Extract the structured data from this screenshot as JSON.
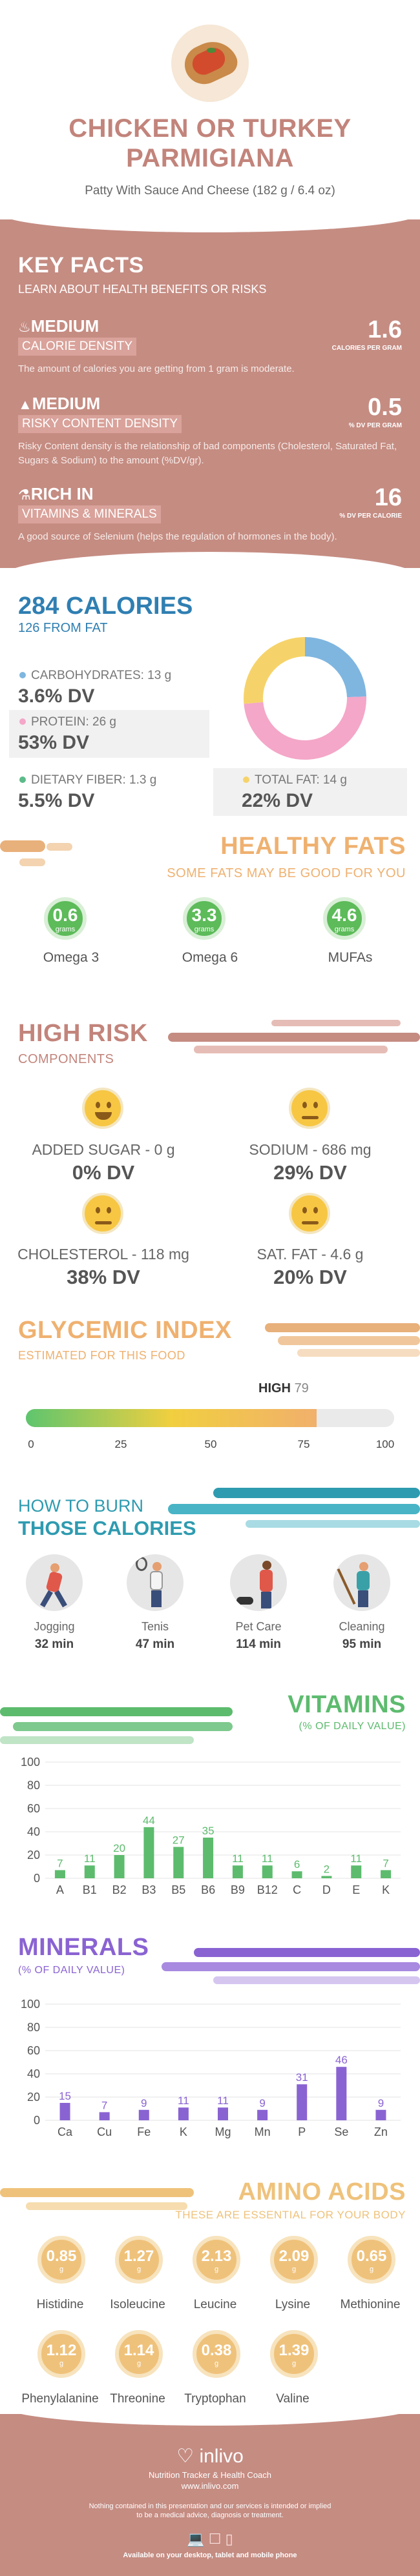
{
  "header": {
    "title_line1": "CHICKEN OR TURKEY",
    "title_line2": "PARMIGIANA",
    "subtitle": "Patty With Sauce And Cheese (182 g / 6.4 oz)"
  },
  "key_facts": {
    "title": "KEY FACTS",
    "subtitle": "LEARN ABOUT HEALTH BENEFITS OR RISKS",
    "items": [
      {
        "icon": "flame-icon",
        "label1": "MEDIUM",
        "label2": "CALORIE DENSITY",
        "value": "1.6",
        "unit": "CALORIES PER GRAM",
        "desc": "The amount of calories you are getting from 1 gram is moderate."
      },
      {
        "icon": "warning-icon",
        "label1": "MEDIUM",
        "label2": "RISKY CONTENT DENSITY",
        "value": "0.5",
        "unit": "% DV PER GRAM",
        "desc": "Risky Content density is the relationship of bad components (Cholesterol, Saturated Fat, Sugars & Sodium) to the amount (%DV/gr)."
      },
      {
        "icon": "flask-icon",
        "label1": "RICH  IN",
        "label2": "VITAMINS & MINERALS",
        "value": "16",
        "unit": "% DV PER CALORIE",
        "desc": "A good source of Selenium (helps the regulation of hormones in the body)."
      }
    ]
  },
  "calories": {
    "title": "284 CALORIES",
    "from_fat": "126 FROM FAT",
    "nutrients": [
      {
        "label": "CARBOHYDRATES: 13 g",
        "dv": "3.6% DV",
        "color": "#7fb6e0"
      },
      {
        "label": "PROTEIN: 26 g",
        "dv": "53% DV",
        "color": "#f4a7c8"
      },
      {
        "label": "DIETARY FIBER: 1.3 g",
        "dv": "5.5% DV",
        "color": "#5dbb8a"
      },
      {
        "label": "TOTAL FAT: 14 g",
        "dv": "22% DV",
        "color": "#f6d36a"
      }
    ],
    "donut": [
      {
        "name": "carbs",
        "value": 13,
        "color": "#7fb6e0"
      },
      {
        "name": "protein",
        "value": 26,
        "color": "#f4a7c8"
      },
      {
        "name": "fat",
        "value": 14,
        "color": "#f6d36a"
      }
    ]
  },
  "healthy_fats": {
    "title": "HEALTHY FATS",
    "subtitle": "SOME FATS MAY BE GOOD FOR YOU",
    "unit": "grams",
    "items": [
      {
        "value": "0.6",
        "label": "Omega 3"
      },
      {
        "value": "3.3",
        "label": "Omega 6"
      },
      {
        "value": "4.6",
        "label": "MUFAs"
      }
    ]
  },
  "high_risk": {
    "title": "HIGH RISK",
    "subtitle": "COMPONENTS",
    "items": [
      {
        "label": "ADDED SUGAR - 0 g",
        "dv": "0% DV"
      },
      {
        "label": "SODIUM - 686 mg",
        "dv": "29% DV"
      },
      {
        "label": "CHOLESTEROL - 118 mg",
        "dv": "38% DV"
      },
      {
        "label": "SAT. FAT - 4.6 g",
        "dv": "20% DV"
      }
    ]
  },
  "glycemic": {
    "title": "GLYCEMIC INDEX",
    "subtitle": "ESTIMATED FOR THIS FOOD",
    "level": "HIGH",
    "value": "79",
    "value_num": 79,
    "ticks": [
      "0",
      "25",
      "50",
      "75",
      "100"
    ]
  },
  "burn": {
    "title1": "HOW TO BURN",
    "title2": "THOSE CALORIES",
    "items": [
      {
        "label": "Jogging",
        "time": "32 min"
      },
      {
        "label": "Tenis",
        "time": "47 min"
      },
      {
        "label": "Pet Care",
        "time": "114 min"
      },
      {
        "label": "Cleaning",
        "time": "95 min"
      }
    ]
  },
  "vitamins": {
    "title": "VITAMINS",
    "subtitle": "(% OF DAILY VALUE)",
    "color": "#5dbb6e",
    "chart_data": {
      "type": "bar",
      "categories": [
        "A",
        "B1",
        "B2",
        "B3",
        "B5",
        "B6",
        "B9",
        "B12",
        "C",
        "D",
        "E",
        "K"
      ],
      "values": [
        7,
        11,
        20,
        44,
        27,
        35,
        11,
        11,
        6,
        2,
        11,
        7
      ],
      "ylim": [
        0,
        100
      ],
      "yticks": [
        0,
        20,
        40,
        60,
        80,
        100
      ]
    }
  },
  "minerals": {
    "title": "MINERALS",
    "subtitle": "(% OF DAILY VALUE)",
    "color": "#8a63d2",
    "chart_data": {
      "type": "bar",
      "categories": [
        "Ca",
        "Cu",
        "Fe",
        "K",
        "Mg",
        "Mn",
        "P",
        "Se",
        "Zn"
      ],
      "values": [
        15,
        7,
        9,
        11,
        11,
        9,
        31,
        46,
        9
      ],
      "ylim": [
        0,
        100
      ],
      "yticks": [
        0,
        20,
        40,
        60,
        80,
        100
      ]
    }
  },
  "amino": {
    "title": "AMINO ACIDS",
    "subtitle": "THESE ARE ESSENTIAL FOR YOUR BODY",
    "unit": "g",
    "items": [
      {
        "value": "0.85",
        "label": "Histidine"
      },
      {
        "value": "1.27",
        "label": "Isoleucine"
      },
      {
        "value": "2.13",
        "label": "Leucine"
      },
      {
        "value": "2.09",
        "label": "Lysine"
      },
      {
        "value": "0.65",
        "label": "Methionine"
      },
      {
        "value": "1.12",
        "label": "Phenylalanine"
      },
      {
        "value": "1.14",
        "label": "Threonine"
      },
      {
        "value": "0.38",
        "label": "Tryptophan"
      },
      {
        "value": "1.39",
        "label": "Valine"
      }
    ]
  },
  "footer": {
    "brand": "inlivo",
    "tagline": "Nutrition Tracker & Health Coach",
    "url": "www.inlivo.com",
    "disclaimer1": "Nothing contained in this presentation and our services is intended or implied",
    "disclaimer2": "to be a medical advice, diagnosis or treatment.",
    "available": "Available on your desktop, tablet and mobile phone"
  }
}
